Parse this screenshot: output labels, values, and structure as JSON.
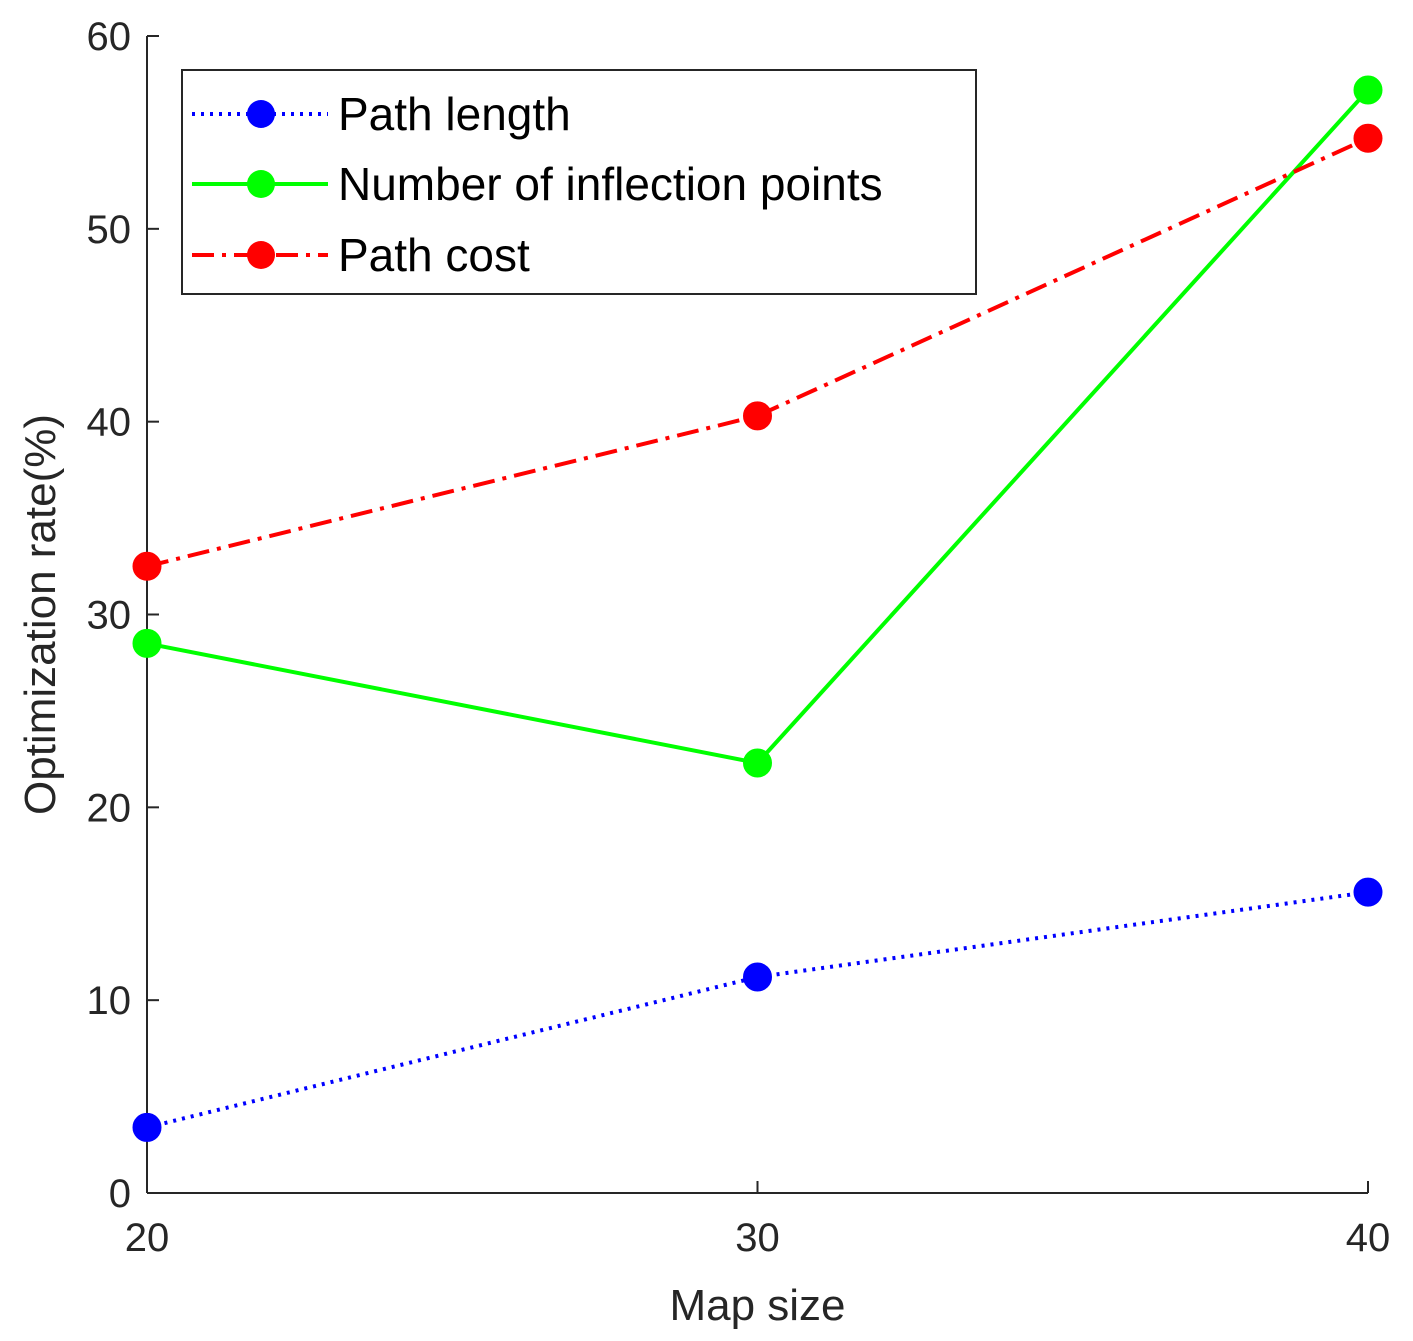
{
  "chart_data": {
    "type": "line",
    "title": "",
    "xlabel": "Map size",
    "ylabel": "Optimization rate(%)",
    "x": [
      20,
      30,
      40
    ],
    "xlim": [
      20,
      40
    ],
    "ylim": [
      0,
      60
    ],
    "xticks": [
      "20",
      "30",
      "40"
    ],
    "yticks": [
      "0",
      "10",
      "20",
      "30",
      "40",
      "50",
      "60"
    ],
    "grid": false,
    "legend_position": "top-left",
    "series": [
      {
        "name": "Path length",
        "values": [
          3.4,
          11.2,
          15.6
        ],
        "color": "#0000ff",
        "style": "dotted"
      },
      {
        "name": "Number of inflection points",
        "values": [
          28.5,
          22.3,
          57.2
        ],
        "color": "#00ff00",
        "style": "solid"
      },
      {
        "name": "Path cost",
        "values": [
          32.5,
          40.3,
          54.7
        ],
        "color": "#ff0000",
        "style": "dashdot"
      }
    ]
  }
}
